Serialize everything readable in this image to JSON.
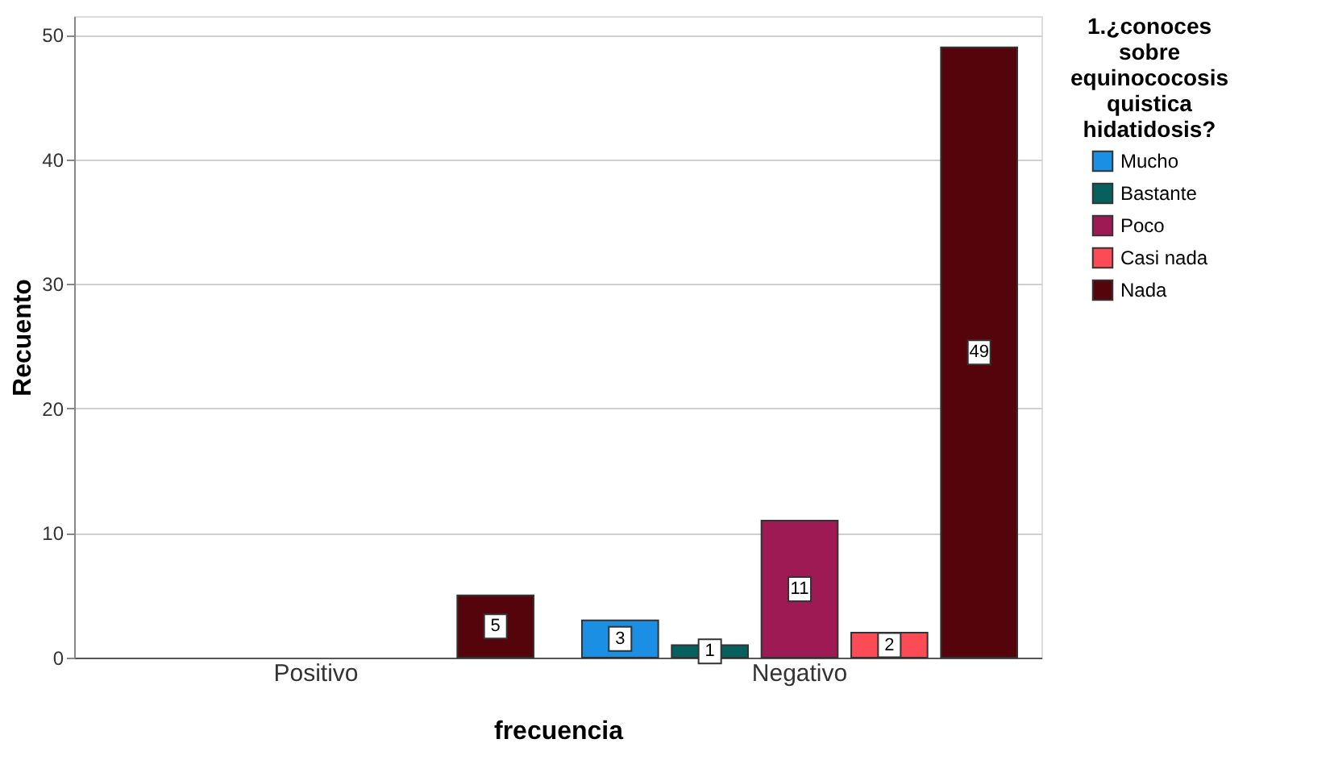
{
  "chart_data": {
    "type": "bar",
    "xlabel": "frecuencia",
    "ylabel": "Recuento",
    "legend_title": "1.¿conoces sobre equinococosis quistica hidatidosis?",
    "categories": [
      "Positivo",
      "Negativo"
    ],
    "series": [
      {
        "name": "Mucho",
        "color": "#1a8fe3",
        "values": [
          null,
          3
        ]
      },
      {
        "name": "Bastante",
        "color": "#06605e",
        "values": [
          null,
          1
        ]
      },
      {
        "name": "Poco",
        "color": "#9e1a55",
        "values": [
          null,
          11
        ]
      },
      {
        "name": "Casi nada",
        "color": "#fc4b55",
        "values": [
          null,
          2
        ]
      },
      {
        "name": "Nada",
        "color": "#56040b",
        "values": [
          5,
          49
        ]
      }
    ],
    "ylim": [
      0,
      51.5
    ],
    "yticks": [
      0,
      10,
      20,
      30,
      40,
      50
    ],
    "grid": "y",
    "legend": "top right",
    "data_labels": true
  }
}
